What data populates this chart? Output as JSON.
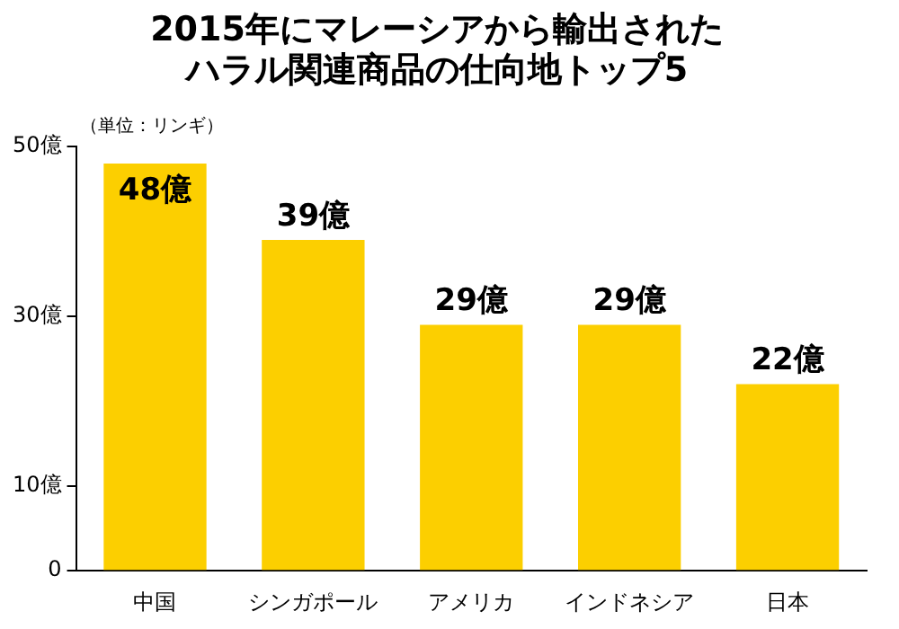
{
  "chart_data": {
    "type": "bar",
    "title": "2015年にマレーシアから輸出されたハラル関連商品の仕向地トップ5",
    "categories": [
      "中国",
      "シンガポール",
      "アメリカ",
      "インドネシア",
      "日本"
    ],
    "values": [
      48,
      39,
      29,
      29,
      22
    ],
    "value_labels": [
      "48億",
      "39億",
      "29億",
      "29億",
      "22億"
    ],
    "color": "#fccf00",
    "ylim": [
      0,
      50
    ],
    "yticks": [
      {
        "value": 0,
        "label": "0"
      },
      {
        "value": 10,
        "label": "10億"
      },
      {
        "value": 30,
        "label": "30億"
      },
      {
        "value": 50,
        "label": "50億"
      }
    ],
    "annotations": [
      "（単位：リンギ）"
    ],
    "legend": false
  }
}
